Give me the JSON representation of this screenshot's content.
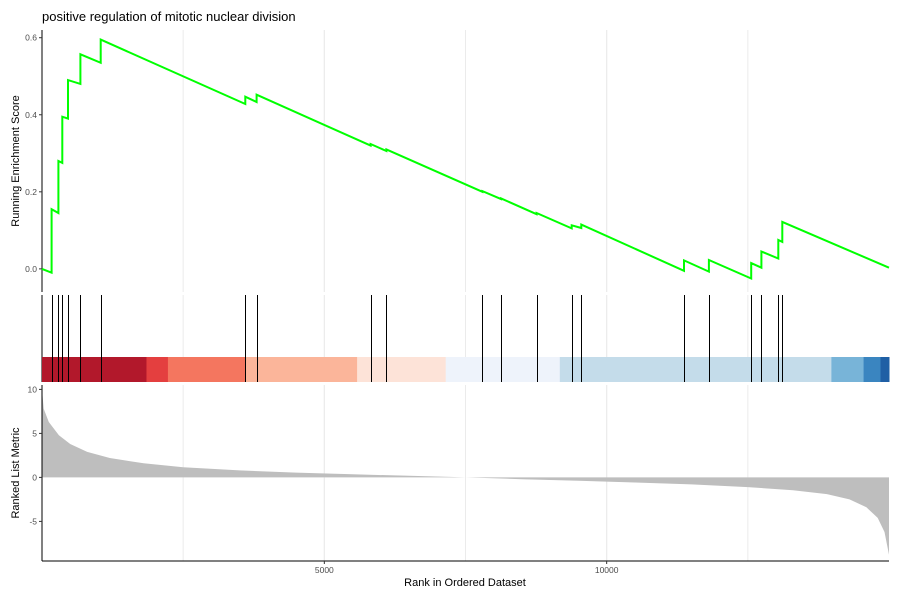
{
  "chart_data": {
    "type": "line",
    "title": "positive regulation of mitotic nuclear division",
    "xlabel": "Rank in Ordered Dataset",
    "xlim": [
      0,
      15000
    ],
    "x_ticks": [
      5000,
      10000
    ],
    "x_tick_labels": [
      "5000",
      "10000"
    ],
    "grid": true,
    "es_panel": {
      "ylabel": "Running Enrichment Score",
      "ylim": [
        -0.06,
        0.62
      ],
      "y_ticks": [
        0.0,
        0.2,
        0.4,
        0.6
      ],
      "y_tick_labels": [
        "0.0",
        "0.2",
        "0.4",
        "0.6"
      ],
      "line_color": "#00ff00",
      "points": [
        [
          0,
          0
        ],
        [
          170,
          -0.01
        ],
        [
          170,
          0.155
        ],
        [
          290,
          0.145
        ],
        [
          290,
          0.28
        ],
        [
          360,
          0.275
        ],
        [
          360,
          0.395
        ],
        [
          460,
          0.39
        ],
        [
          460,
          0.49
        ],
        [
          680,
          0.48
        ],
        [
          680,
          0.557
        ],
        [
          1040,
          0.535
        ],
        [
          1040,
          0.595
        ],
        [
          3600,
          0.428
        ],
        [
          3600,
          0.447
        ],
        [
          3800,
          0.433
        ],
        [
          3800,
          0.452
        ],
        [
          5820,
          0.32
        ],
        [
          5820,
          0.324
        ],
        [
          6100,
          0.306
        ],
        [
          6100,
          0.31
        ],
        [
          7800,
          0.2
        ],
        [
          7800,
          0.202
        ],
        [
          8130,
          0.181
        ],
        [
          8130,
          0.183
        ],
        [
          8760,
          0.142
        ],
        [
          8760,
          0.145
        ],
        [
          9380,
          0.105
        ],
        [
          9380,
          0.113
        ],
        [
          9550,
          0.106
        ],
        [
          9550,
          0.115
        ],
        [
          11370,
          -0.005
        ],
        [
          11370,
          0.022
        ],
        [
          11810,
          -0.007
        ],
        [
          11810,
          0.023
        ],
        [
          12560,
          -0.025
        ],
        [
          12560,
          0.015
        ],
        [
          12740,
          0.003
        ],
        [
          12740,
          0.045
        ],
        [
          13040,
          0.027
        ],
        [
          13040,
          0.075
        ],
        [
          13110,
          0.07
        ],
        [
          13110,
          0.122
        ],
        [
          15000,
          0.003
        ]
      ]
    },
    "hit_ranks": [
      170,
      290,
      360,
      460,
      680,
      1040,
      3600,
      3800,
      5820,
      6100,
      7800,
      8130,
      8760,
      9380,
      9550,
      11370,
      11810,
      12560,
      12740,
      13040,
      13110
    ],
    "color_bands": [
      {
        "start": 0,
        "end": 1850,
        "color": "#b2182b"
      },
      {
        "start": 1850,
        "end": 2230,
        "color": "#e43f3f"
      },
      {
        "start": 2230,
        "end": 3600,
        "color": "#f4765f"
      },
      {
        "start": 3600,
        "end": 5580,
        "color": "#fbb59a"
      },
      {
        "start": 5580,
        "end": 7150,
        "color": "#fde3d8"
      },
      {
        "start": 7150,
        "end": 9170,
        "color": "#eef3fb"
      },
      {
        "start": 9170,
        "end": 13980,
        "color": "#c4dcea"
      },
      {
        "start": 13980,
        "end": 14550,
        "color": "#78b4d8"
      },
      {
        "start": 14550,
        "end": 14850,
        "color": "#3a85c0"
      },
      {
        "start": 14850,
        "end": 15000,
        "color": "#1f5fa5"
      }
    ],
    "rank_panel": {
      "ylabel": "Ranked List Metric",
      "ylim": [
        -9.5,
        10.5
      ],
      "y_ticks": [
        10,
        5,
        0,
        -5
      ],
      "y_tick_labels": [
        "10",
        "5",
        "0",
        "-5"
      ],
      "fill_color": "#bebebe",
      "points": [
        [
          0,
          10
        ],
        [
          30,
          7.8
        ],
        [
          120,
          6.3
        ],
        [
          300,
          4.8
        ],
        [
          500,
          3.8
        ],
        [
          800,
          2.9
        ],
        [
          1200,
          2.2
        ],
        [
          1800,
          1.6
        ],
        [
          2500,
          1.15
        ],
        [
          3500,
          0.8
        ],
        [
          4500,
          0.55
        ],
        [
          5500,
          0.35
        ],
        [
          6500,
          0.18
        ],
        [
          7300,
          0.04
        ],
        [
          7500,
          0
        ],
        [
          8500,
          -0.2
        ],
        [
          9500,
          -0.38
        ],
        [
          10500,
          -0.58
        ],
        [
          11500,
          -0.8
        ],
        [
          12500,
          -1.1
        ],
        [
          13300,
          -1.45
        ],
        [
          13900,
          -1.9
        ],
        [
          14300,
          -2.5
        ],
        [
          14600,
          -3.4
        ],
        [
          14800,
          -4.6
        ],
        [
          14920,
          -6.2
        ],
        [
          15000,
          -8.8
        ]
      ]
    }
  }
}
